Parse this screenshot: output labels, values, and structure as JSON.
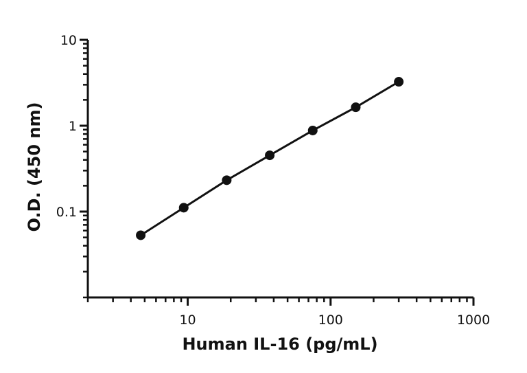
{
  "chart_data": {
    "type": "scatter",
    "xlabel": "Human IL-16 (pg/mL)",
    "ylabel": "O.D. (450 nm)",
    "x_scale": "log",
    "y_scale": "log",
    "xlim": [
      2,
      1000
    ],
    "ylim": [
      0.01,
      10
    ],
    "x_ticks": [
      {
        "value": 10,
        "label": "10"
      },
      {
        "value": 100,
        "label": "100"
      },
      {
        "value": 1000,
        "label": "1000"
      }
    ],
    "y_ticks": [
      {
        "value": 0.1,
        "label": "0.1"
      },
      {
        "value": 1,
        "label": "1"
      },
      {
        "value": 10,
        "label": "10"
      }
    ],
    "grid": false,
    "fit_line": true,
    "marker_color": "#111111",
    "series": [
      {
        "x": [
          4.69,
          9.38,
          18.75,
          37.5,
          75,
          150,
          300
        ],
        "y": [
          0.053,
          0.111,
          0.232,
          0.452,
          0.88,
          1.64,
          3.25
        ]
      }
    ]
  }
}
